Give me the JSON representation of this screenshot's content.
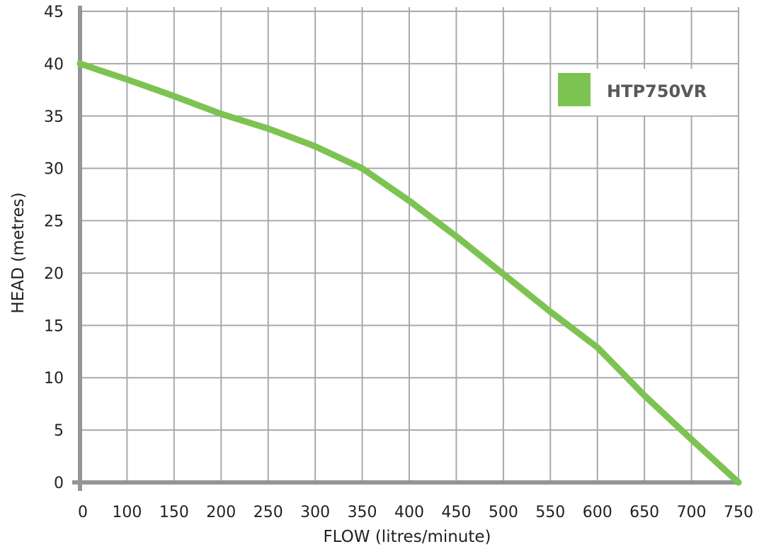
{
  "chart_data": {
    "type": "line",
    "title": "",
    "xlabel": "FLOW (litres/minute)",
    "ylabel": "HEAD (metres)",
    "x_tick_labels": [
      "0",
      "100",
      "150",
      "200",
      "250",
      "300",
      "350",
      "400",
      "450",
      "500",
      "550",
      "600",
      "650",
      "700",
      "750"
    ],
    "y_tick_labels": [
      "0",
      "5",
      "10",
      "15",
      "20",
      "25",
      "30",
      "35",
      "40",
      "45"
    ],
    "ylim": [
      0,
      45
    ],
    "xlim": [
      0,
      750
    ],
    "grid": true,
    "legend_position": "top-right",
    "series": [
      {
        "name": "HTP750VR",
        "color": "#7dc352",
        "x": [
          0,
          100,
          150,
          200,
          250,
          300,
          350,
          400,
          450,
          500,
          550,
          600,
          650,
          700,
          750
        ],
        "y": [
          40,
          38.5,
          36.9,
          35.2,
          33.8,
          32.1,
          30,
          26.9,
          23.5,
          19.9,
          16.3,
          12.9,
          8.3,
          4.1,
          0
        ]
      }
    ]
  },
  "colors": {
    "grid": "#a7a9ac",
    "axis": "#939598",
    "legend_text": "#58595b"
  }
}
